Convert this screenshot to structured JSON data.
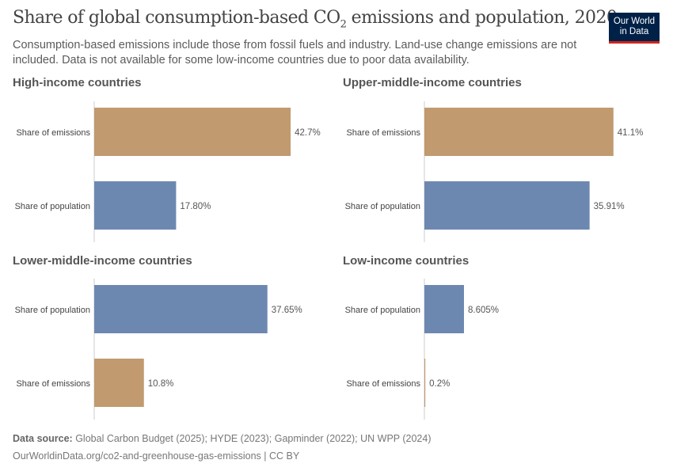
{
  "header": {
    "title_pre": "Share of global consumption-based CO",
    "title_sub": "2",
    "title_post": " emissions and population, 2020",
    "subtitle": "Consumption-based emissions include those from fossil fuels and industry. Land-use change emissions are not included. Data is not available for some low-income countries due to poor data availability.",
    "logo_line1": "Our World",
    "logo_line2": "in Data"
  },
  "colors": {
    "emissions": "#c19a6f",
    "population": "#6d88b0"
  },
  "chart_data": [
    {
      "type": "bar",
      "orientation": "horizontal",
      "title": "High-income countries",
      "categories": [
        "Share of emissions",
        "Share of population"
      ],
      "values": [
        42.7,
        17.8
      ],
      "labels": [
        "42.7%",
        "17.80%"
      ],
      "series_keys": [
        "emissions",
        "population"
      ]
    },
    {
      "type": "bar",
      "orientation": "horizontal",
      "title": "Upper-middle-income countries",
      "categories": [
        "Share of emissions",
        "Share of population"
      ],
      "values": [
        41.1,
        35.91
      ],
      "labels": [
        "41.1%",
        "35.91%"
      ],
      "series_keys": [
        "emissions",
        "population"
      ]
    },
    {
      "type": "bar",
      "orientation": "horizontal",
      "title": "Lower-middle-income countries",
      "categories": [
        "Share of population",
        "Share of emissions"
      ],
      "values": [
        37.65,
        10.8
      ],
      "labels": [
        "37.65%",
        "10.8%"
      ],
      "series_keys": [
        "population",
        "emissions"
      ]
    },
    {
      "type": "bar",
      "orientation": "horizontal",
      "title": "Low-income countries",
      "categories": [
        "Share of population",
        "Share of emissions"
      ],
      "values": [
        8.605,
        0.2
      ],
      "labels": [
        "8.605%",
        "0.2%"
      ],
      "series_keys": [
        "population",
        "emissions"
      ]
    }
  ],
  "footer": {
    "source_label": "Data source:",
    "source": " Global Carbon Budget (2025); HYDE (2023); Gapminder (2022); UN WPP (2024)",
    "url": "OurWorldinData.org/co2-and-greenhouse-gas-emissions | CC BY"
  }
}
